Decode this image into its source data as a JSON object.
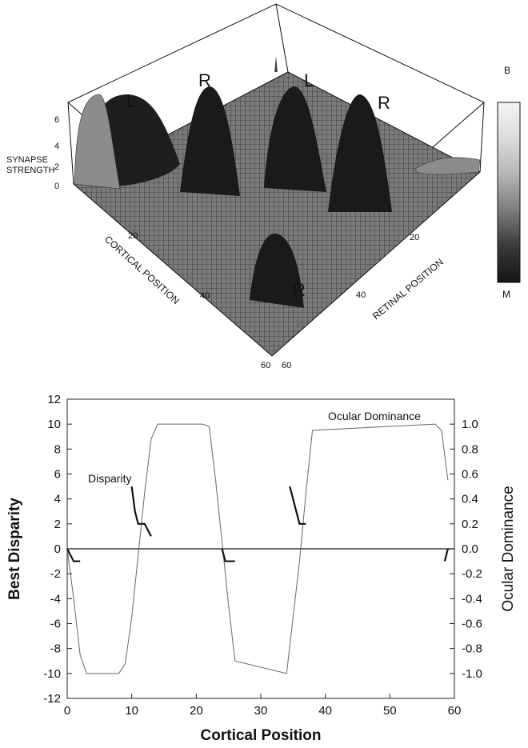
{
  "chart_data": [
    {
      "type": "surface",
      "axis_labels": {
        "z": [
          "SYNAPSE",
          "STRENGTH"
        ],
        "x": "CORTICAL POSITION",
        "y": "RETINAL POSITION"
      },
      "z_ticks": [
        "0",
        "2",
        "4",
        "6"
      ],
      "x_ticks": [
        "20",
        "40",
        "60"
      ],
      "y_ticks": [
        "20",
        "40",
        "60"
      ],
      "peak_labels": [
        "L",
        "R",
        "L",
        "R",
        "R"
      ],
      "colorbar": {
        "top_label": "B",
        "bottom_label": "M",
        "gradient": [
          "#f4f4f4",
          "#dcdcdc",
          "#b5b5b5",
          "#7c7c7c",
          "#3a3a3a",
          "#141414"
        ]
      }
    },
    {
      "type": "line",
      "xlabel": "Cortical Position",
      "ylabel_left": "Best Disparity",
      "ylabel_right": "Ocular Dominance",
      "xlim": [
        0,
        60
      ],
      "ylim_left": [
        -12,
        12
      ],
      "ylim_right": [
        -1.2,
        1.2
      ],
      "x_ticks": [
        0,
        10,
        20,
        30,
        40,
        50,
        60
      ],
      "y_left_ticks": [
        12,
        10,
        8,
        6,
        4,
        2,
        0,
        -2,
        -4,
        -6,
        -8,
        -10,
        -12
      ],
      "y_right_ticks": [
        "1.0",
        "0.8",
        "0.6",
        "0.4",
        "0.2",
        "0.0",
        "-0.2",
        "-0.4",
        "-0.6",
        "-0.8",
        "-1.0"
      ],
      "series": [
        {
          "name": "Ocular Dominance",
          "axis": "right",
          "x": [
            0,
            1,
            2,
            3,
            4,
            8,
            9,
            10,
            11,
            12,
            13,
            14,
            21,
            22,
            23,
            24,
            25,
            26,
            34,
            35,
            36,
            37,
            38,
            57,
            58,
            59
          ],
          "y": [
            0.0,
            -0.4,
            -0.85,
            -1.0,
            -1.0,
            -1.0,
            -0.92,
            -0.55,
            -0.05,
            0.45,
            0.88,
            1.0,
            1.0,
            0.98,
            0.55,
            0.05,
            -0.45,
            -0.9,
            -1.0,
            -0.55,
            -0.1,
            0.45,
            0.95,
            1.0,
            0.95,
            0.55
          ]
        },
        {
          "name": "Disparity",
          "axis": "left",
          "segments": [
            {
              "x": [
                0,
                1,
                2
              ],
              "y": [
                0,
                -1,
                -1
              ]
            },
            {
              "x": [
                10,
                10.5,
                11,
                12,
                13
              ],
              "y": [
                5,
                3,
                2,
                2,
                1
              ]
            },
            {
              "x": [
                24,
                24.5,
                25,
                26
              ],
              "y": [
                0,
                -1,
                -1,
                -1
              ]
            },
            {
              "x": [
                34.5,
                35,
                35.5,
                36,
                37
              ],
              "y": [
                5,
                4,
                3,
                2,
                2
              ]
            },
            {
              "x": [
                58.5,
                59
              ],
              "y": [
                -1,
                0
              ]
            }
          ]
        }
      ],
      "baseline": 0,
      "annotations": [
        "Ocular Dominance",
        "Disparity"
      ]
    }
  ]
}
